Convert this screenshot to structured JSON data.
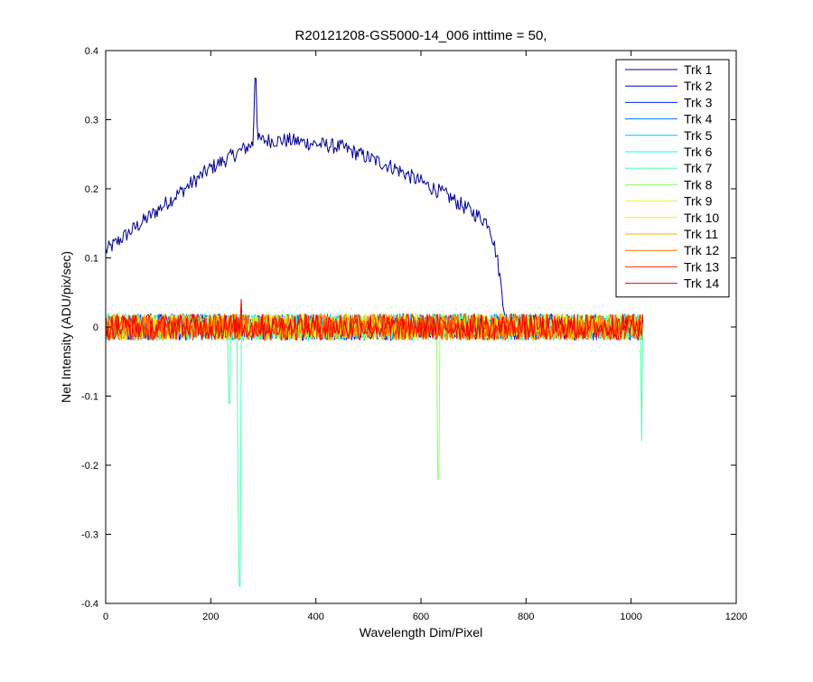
{
  "chart_data": {
    "type": "line",
    "title": "R20121208-GS5000-14_006 inttime = 50,",
    "xlabel": "Wavelength Dim/Pixel",
    "ylabel": "Net Intensity (ADU/pix/sec)",
    "xlim": [
      0,
      1200
    ],
    "ylim": [
      -0.4,
      0.4
    ],
    "xticks": [
      0,
      200,
      400,
      600,
      800,
      1000,
      1200
    ],
    "xtick_labels": [
      "0",
      "200",
      "400",
      "600",
      "800",
      "1000",
      "1200"
    ],
    "yticks": [
      -0.4,
      -0.3,
      -0.2,
      -0.1,
      0,
      0.1,
      0.2,
      0.3,
      0.4
    ],
    "ytick_labels": [
      "-0.4",
      "-0.3",
      "-0.2",
      "-0.1",
      "0",
      "0.1",
      "0.2",
      "0.3",
      "0.4"
    ],
    "grid": false,
    "legend_position": "top-right",
    "x_range_of_series": [
      0,
      1023
    ],
    "series": [
      {
        "name": "Trk 1",
        "color": "#00008f",
        "points": [
          [
            0,
            0.11
          ],
          [
            100,
            0.17
          ],
          [
            200,
            0.23
          ],
          [
            280,
            0.265
          ],
          [
            285,
            0.36
          ],
          [
            290,
            0.27
          ],
          [
            350,
            0.27
          ],
          [
            450,
            0.26
          ],
          [
            550,
            0.23
          ],
          [
            650,
            0.19
          ],
          [
            730,
            0.15
          ],
          [
            745,
            0.1
          ],
          [
            760,
            0.02
          ],
          [
            765,
            0.005
          ],
          [
            1020,
            0.0
          ]
        ]
      },
      {
        "name": "Trk 2",
        "color": "#0000d0"
      },
      {
        "name": "Trk 3",
        "color": "#0020ff"
      },
      {
        "name": "Trk 4",
        "color": "#0070ff"
      },
      {
        "name": "Trk 5",
        "color": "#00c0ff"
      },
      {
        "name": "Trk 6",
        "color": "#10ffef"
      },
      {
        "name": "Trk 7",
        "color": "#50ffaf",
        "spikes": [
          [
            235,
            -0.11
          ],
          [
            252,
            -0.14
          ],
          [
            253,
            -0.255
          ],
          [
            255,
            -0.375
          ],
          [
            1020,
            -0.165
          ]
        ]
      },
      {
        "name": "Trk 8",
        "color": "#90ff6f",
        "spikes": [
          [
            633,
            -0.22
          ]
        ]
      },
      {
        "name": "Trk 9",
        "color": "#d0ff2f"
      },
      {
        "name": "Trk 10",
        "color": "#ffef00"
      },
      {
        "name": "Trk 11",
        "color": "#ffb000"
      },
      {
        "name": "Trk 12",
        "color": "#ff7000"
      },
      {
        "name": "Trk 13",
        "color": "#ff3000"
      },
      {
        "name": "Trk 14",
        "color": "#ef0000",
        "spikes": [
          [
            258,
            0.04
          ]
        ]
      }
    ],
    "noise_band_around_zero": [
      -0.02,
      0.025
    ]
  }
}
